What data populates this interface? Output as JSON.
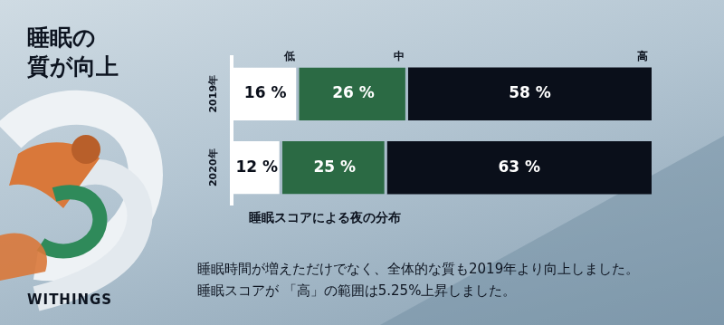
{
  "chart_data": {
    "type": "bar",
    "title": [
      "睡眠の",
      "質が向上"
    ],
    "x_label": "睡眠スコアによる夜の分布",
    "annotation": "睡眠時間が増えただけでなく、全体的な質も2019年より向上しました。睡眠スコアが 「高」の範囲は5.25%上昇しました。",
    "brand": "WITHINGS",
    "orientation": "horizontal",
    "stacked": true,
    "data_labels": true,
    "tick_labels": "y",
    "legend": "top",
    "grid": false,
    "categories": [
      "2019年",
      "2020年"
    ],
    "series": [
      {
        "name": "低",
        "color": "#ffffff",
        "values": [
          16,
          12
        ],
        "value_labels": [
          "16 %",
          "12 %"
        ]
      },
      {
        "name": "中",
        "color": "#2b6a44",
        "values": [
          26,
          25
        ],
        "value_labels": [
          "26 %",
          "25 %"
        ]
      },
      {
        "name": "高",
        "color": "#0a0f1a",
        "values": [
          58,
          63
        ],
        "value_labels": [
          "58 %",
          "63 %"
        ]
      }
    ],
    "xlim": [
      0,
      100
    ]
  }
}
